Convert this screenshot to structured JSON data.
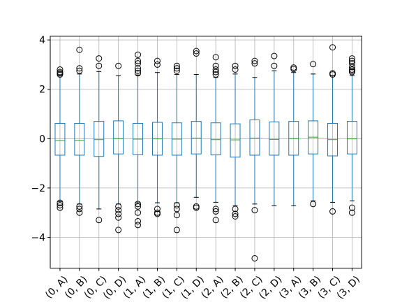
{
  "chart_data": {
    "type": "box",
    "title": "",
    "xlabel": "",
    "ylabel": "",
    "ylim": [
      -5.25,
      4.15
    ],
    "yticks": [
      -4,
      -2,
      0,
      2,
      4
    ],
    "ytick_labels": [
      "−4",
      "−2",
      "0",
      "2",
      "4"
    ],
    "grid": true,
    "categories": [
      "(0, A)",
      "(0, B)",
      "(0, C)",
      "(0, D)",
      "(1, A)",
      "(1, B)",
      "(1, C)",
      "(1, D)",
      "(2, A)",
      "(2, B)",
      "(2, C)",
      "(2, D)",
      "(3, A)",
      "(3, B)",
      "(3, C)",
      "(3, D)"
    ],
    "boxes": [
      {
        "q1": -0.67,
        "median": -0.08,
        "q3": 0.62,
        "whisker_low": -2.55,
        "whisker_high": 2.55,
        "outliers": [
          2.6,
          2.65,
          2.7,
          2.8,
          -2.6,
          -2.7,
          -2.8
        ]
      },
      {
        "q1": -0.67,
        "median": -0.07,
        "q3": 0.62,
        "whisker_low": -2.65,
        "whisker_high": 2.62,
        "outliers": [
          2.75,
          2.85,
          3.6,
          -2.75,
          -2.85,
          -3.0
        ]
      },
      {
        "q1": -0.72,
        "median": -0.04,
        "q3": 0.7,
        "whisker_low": -2.85,
        "whisker_high": 2.72,
        "outliers": [
          2.95,
          3.25,
          -3.3
        ]
      },
      {
        "q1": -0.62,
        "median": 0.0,
        "q3": 0.72,
        "whisker_low": -2.65,
        "whisker_high": 2.55,
        "outliers": [
          2.95,
          -2.75,
          -2.9,
          -3.05,
          -3.2,
          -3.7
        ]
      },
      {
        "q1": -0.65,
        "median": -0.02,
        "q3": 0.62,
        "whisker_low": -2.6,
        "whisker_high": 2.58,
        "outliers": [
          2.65,
          2.75,
          2.85,
          3.05,
          3.15,
          3.4,
          -2.65,
          -2.75,
          -3.0,
          -3.35,
          -3.5
        ]
      },
      {
        "q1": -0.67,
        "median": -0.01,
        "q3": 0.66,
        "whisker_low": -2.6,
        "whisker_high": 2.68,
        "outliers": [
          3.0,
          3.15,
          -2.85,
          -3.0,
          -3.05
        ]
      },
      {
        "q1": -0.67,
        "median": -0.02,
        "q3": 0.64,
        "whisker_low": -2.6,
        "whisker_high": 2.6,
        "outliers": [
          2.75,
          2.85,
          2.95,
          -2.7,
          -2.85,
          -3.1,
          -3.7
        ]
      },
      {
        "q1": -0.62,
        "median": 0.02,
        "q3": 0.7,
        "whisker_low": -2.38,
        "whisker_high": 2.6,
        "outliers": [
          3.45,
          3.55,
          -2.75,
          -2.8
        ]
      },
      {
        "q1": -0.66,
        "median": -0.04,
        "q3": 0.64,
        "whisker_low": -2.58,
        "whisker_high": 2.48,
        "outliers": [
          2.6,
          2.7,
          2.8,
          2.95,
          3.3,
          -2.85,
          -2.95,
          -3.3
        ]
      },
      {
        "q1": -0.75,
        "median": -0.05,
        "q3": 0.6,
        "whisker_low": -2.72,
        "whisker_high": 2.62,
        "outliers": [
          2.8,
          2.95,
          -2.85,
          -3.05,
          -3.15
        ]
      },
      {
        "q1": -0.67,
        "median": 0.02,
        "q3": 0.76,
        "whisker_low": -2.65,
        "whisker_high": 2.48,
        "outliers": [
          3.05,
          3.15,
          -2.9,
          -4.85
        ]
      },
      {
        "q1": -0.67,
        "median": -0.03,
        "q3": 0.68,
        "whisker_low": -2.72,
        "whisker_high": 2.75,
        "outliers": [
          2.95,
          3.35
        ]
      },
      {
        "q1": -0.67,
        "median": 0.0,
        "q3": 0.7,
        "whisker_low": -2.72,
        "whisker_high": 2.68,
        "outliers": [
          2.82,
          2.88
        ]
      },
      {
        "q1": -0.62,
        "median": 0.06,
        "q3": 0.72,
        "whisker_low": -2.52,
        "whisker_high": 2.62,
        "outliers": [
          3.02,
          -2.65
        ]
      },
      {
        "q1": -0.7,
        "median": -0.04,
        "q3": 0.62,
        "whisker_low": -2.58,
        "whisker_high": 2.55,
        "outliers": [
          2.6,
          2.65,
          3.7,
          -2.95
        ]
      },
      {
        "q1": -0.62,
        "median": -0.01,
        "q3": 0.7,
        "whisker_low": -2.52,
        "whisker_high": 2.55,
        "outliers": [
          2.7,
          2.75,
          2.8,
          2.9,
          3.05,
          3.15,
          3.25,
          -2.8,
          -3.0
        ]
      }
    ],
    "colors": {
      "box": "#1f77b4",
      "median": "#2ca02c",
      "grid": "#b0b0b0",
      "outlier": "#000000",
      "axis": "#000000"
    }
  }
}
